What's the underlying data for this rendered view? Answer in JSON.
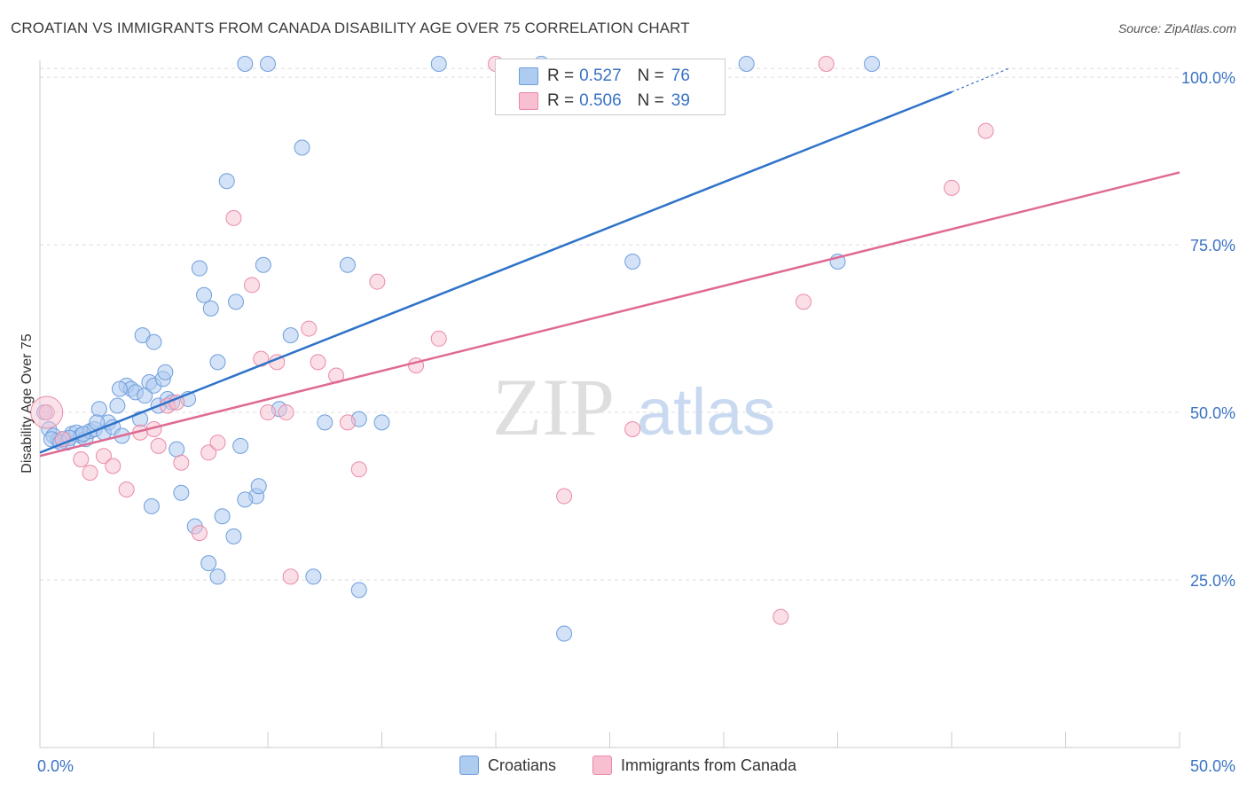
{
  "title": "CROATIAN VS IMMIGRANTS FROM CANADA DISABILITY AGE OVER 75 CORRELATION CHART",
  "source": "Source: ZipAtlas.com",
  "watermark": {
    "zip": "ZIP",
    "atlas": "atlas"
  },
  "legend": {
    "rows": [
      {
        "r_label": "R =",
        "r_value": "0.527",
        "n_label": "N =",
        "n_value": "76"
      },
      {
        "r_label": "R =",
        "r_value": "0.506",
        "n_label": "N =",
        "n_value": "39"
      }
    ]
  },
  "bottom_legend": [
    "Croatians",
    "Immigrants from Canada"
  ],
  "colors": {
    "blue_fill": "#aecbf0",
    "blue_stroke": "#6f9fdc",
    "blue_line": "#2f73c9",
    "pink_fill": "#f7bfd0",
    "pink_stroke": "#e98aa9",
    "pink_line": "#df6a94",
    "tick_label": "#3a72c4"
  },
  "chart_data": {
    "type": "scatter",
    "title": "CROATIAN VS IMMIGRANTS FROM CANADA DISABILITY AGE OVER 75 CORRELATION CHART",
    "xlabel": "",
    "ylabel": "Disability Age Over 75",
    "xlim": [
      0,
      50
    ],
    "ylim": [
      0,
      102
    ],
    "x_tick_labels": [
      "0.0%",
      "50.0%"
    ],
    "y_ticks": [
      25,
      50,
      75,
      100
    ],
    "y_tick_labels": [
      "25.0%",
      "50.0%",
      "75.0%",
      "100.0%"
    ],
    "grid": true,
    "legend_position": "top-center",
    "series": [
      {
        "name": "Croatians",
        "r": 0.527,
        "n": 76,
        "trend": {
          "x": [
            0,
            40
          ],
          "y": [
            44.0,
            97.8
          ],
          "dashed_to": [
            42.5,
            101.3
          ]
        },
        "points": [
          [
            0.2,
            50.0
          ],
          [
            0.4,
            47.5
          ],
          [
            0.6,
            46.5
          ],
          [
            0.8,
            45.8
          ],
          [
            1.0,
            46.0
          ],
          [
            1.2,
            45.5
          ],
          [
            1.4,
            46.8
          ],
          [
            1.6,
            47.0
          ],
          [
            1.8,
            46.5
          ],
          [
            2.0,
            46.0
          ],
          [
            2.2,
            47.2
          ],
          [
            2.4,
            47.5
          ],
          [
            2.6,
            50.5
          ],
          [
            2.8,
            47.0
          ],
          [
            3.0,
            48.5
          ],
          [
            3.2,
            47.8
          ],
          [
            3.4,
            51.0
          ],
          [
            3.6,
            46.5
          ],
          [
            3.8,
            54.0
          ],
          [
            4.0,
            53.5
          ],
          [
            4.2,
            53.0
          ],
          [
            4.4,
            49.0
          ],
          [
            4.6,
            52.5
          ],
          [
            4.8,
            54.5
          ],
          [
            5.0,
            54.0
          ],
          [
            5.2,
            51.0
          ],
          [
            5.4,
            55.0
          ],
          [
            5.6,
            52.0
          ],
          [
            5.8,
            51.5
          ],
          [
            6.0,
            44.5
          ],
          [
            0.5,
            46.0
          ],
          [
            0.9,
            45.5
          ],
          [
            1.3,
            46.2
          ],
          [
            1.9,
            46.8
          ],
          [
            2.5,
            48.5
          ],
          [
            3.5,
            53.5
          ],
          [
            4.5,
            61.5
          ],
          [
            5.0,
            60.5
          ],
          [
            5.5,
            56.0
          ],
          [
            6.5,
            52.0
          ],
          [
            7.0,
            71.5
          ],
          [
            7.2,
            67.5
          ],
          [
            7.5,
            65.5
          ],
          [
            7.8,
            57.5
          ],
          [
            8.2,
            84.5
          ],
          [
            8.6,
            66.5
          ],
          [
            8.8,
            45.0
          ],
          [
            9.0,
            102.0
          ],
          [
            9.5,
            37.5
          ],
          [
            9.8,
            72.0
          ],
          [
            10.0,
            102.0
          ],
          [
            10.5,
            50.5
          ],
          [
            11.0,
            61.5
          ],
          [
            11.5,
            89.5
          ],
          [
            12.5,
            48.5
          ],
          [
            13.5,
            72.0
          ],
          [
            14.0,
            49.0
          ],
          [
            15.0,
            48.5
          ],
          [
            17.5,
            102.0
          ],
          [
            22.0,
            102.0
          ],
          [
            26.0,
            72.5
          ],
          [
            31.0,
            102.0
          ],
          [
            35.0,
            72.5
          ],
          [
            36.5,
            102.0
          ],
          [
            4.9,
            36.0
          ],
          [
            6.2,
            38.0
          ],
          [
            6.8,
            33.0
          ],
          [
            7.4,
            27.5
          ],
          [
            7.8,
            25.5
          ],
          [
            8.0,
            34.5
          ],
          [
            8.5,
            31.5
          ],
          [
            9.0,
            37.0
          ],
          [
            9.6,
            39.0
          ],
          [
            12.0,
            25.5
          ],
          [
            14.0,
            23.5
          ],
          [
            23.0,
            17.0
          ]
        ]
      },
      {
        "name": "Immigrants from Canada",
        "r": 0.506,
        "n": 39,
        "trend": {
          "x": [
            0,
            50
          ],
          "y": [
            43.5,
            85.8
          ]
        },
        "points": [
          [
            0.3,
            50.0
          ],
          [
            1.0,
            46.0
          ],
          [
            1.8,
            43.0
          ],
          [
            2.2,
            41.0
          ],
          [
            2.8,
            43.5
          ],
          [
            3.2,
            42.0
          ],
          [
            3.8,
            38.5
          ],
          [
            4.4,
            47.0
          ],
          [
            5.0,
            47.5
          ],
          [
            5.2,
            45.0
          ],
          [
            5.6,
            51.0
          ],
          [
            6.0,
            51.5
          ],
          [
            6.2,
            42.5
          ],
          [
            7.0,
            32.0
          ],
          [
            7.4,
            44.0
          ],
          [
            7.8,
            45.5
          ],
          [
            8.5,
            79.0
          ],
          [
            9.3,
            69.0
          ],
          [
            9.7,
            58.0
          ],
          [
            10.0,
            50.0
          ],
          [
            10.4,
            57.5
          ],
          [
            10.8,
            50.0
          ],
          [
            11.0,
            25.5
          ],
          [
            11.8,
            62.5
          ],
          [
            12.2,
            57.5
          ],
          [
            13.0,
            55.5
          ],
          [
            13.5,
            48.5
          ],
          [
            14.0,
            41.5
          ],
          [
            14.8,
            69.5
          ],
          [
            16.5,
            57.0
          ],
          [
            17.5,
            61.0
          ],
          [
            23.0,
            37.5
          ],
          [
            26.0,
            47.5
          ],
          [
            32.5,
            19.5
          ],
          [
            33.5,
            66.5
          ],
          [
            34.5,
            102.0
          ],
          [
            40.0,
            83.5
          ],
          [
            41.5,
            92.0
          ],
          [
            20.0,
            102.0
          ]
        ]
      }
    ]
  }
}
